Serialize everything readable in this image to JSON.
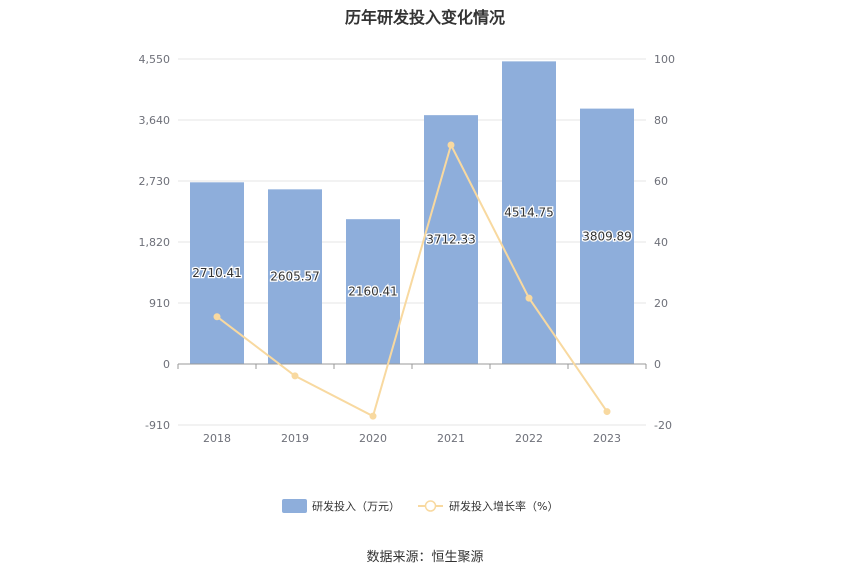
{
  "title": "历年研发投入变化情况",
  "source": "数据来源：恒生聚源",
  "colors": {
    "bar": "#8eaedb",
    "line": "#f8d9a0",
    "grid": "#e6e6e6",
    "axis": "#999999"
  },
  "chart_data": {
    "type": "bar",
    "title": "历年研发投入变化情况",
    "categories": [
      "2018",
      "2019",
      "2020",
      "2021",
      "2022",
      "2023"
    ],
    "series": [
      {
        "name": "研发投入（万元）",
        "type": "bar",
        "axis": "left",
        "values": [
          2710.41,
          2605.57,
          2160.41,
          3712.33,
          4514.75,
          3809.89
        ]
      },
      {
        "name": "研发投入增长率（%）",
        "type": "line",
        "axis": "right",
        "values": [
          15.5,
          -3.9,
          -17.1,
          71.8,
          21.6,
          -15.6
        ]
      }
    ],
    "y_left": {
      "min": -910,
      "max": 4550,
      "ticks": [
        -910,
        0,
        910,
        1820,
        2730,
        3640,
        4550
      ],
      "tick_labels": [
        "-910",
        "0",
        "910",
        "1,820",
        "2,730",
        "3,640",
        "4,550"
      ]
    },
    "y_right": {
      "min": -20,
      "max": 100,
      "ticks": [
        -20,
        0,
        20,
        40,
        60,
        80,
        100
      ],
      "tick_labels": [
        "-20",
        "0",
        "20",
        "40",
        "60",
        "80",
        "100"
      ]
    },
    "bar_labels": [
      "2710.41",
      "2605.57",
      "2160.41",
      "3712.33",
      "4514.75",
      "3809.89"
    ],
    "legend_position": "bottom",
    "grid": true
  }
}
